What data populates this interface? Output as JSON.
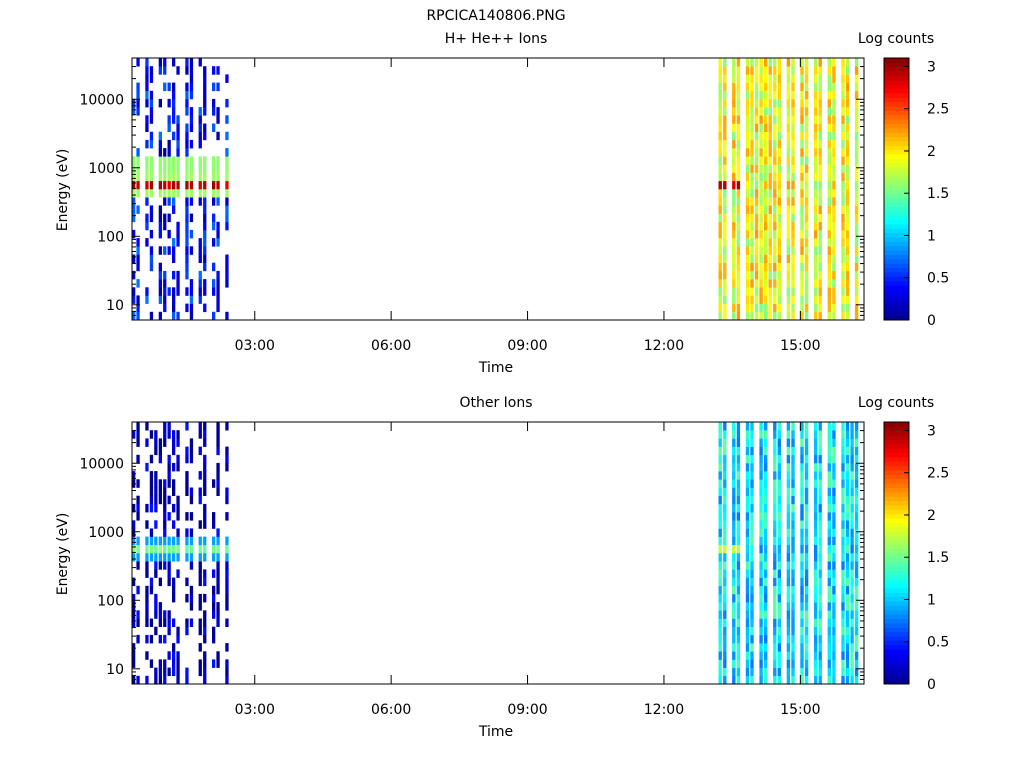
{
  "page_title": "RPCICA140806.PNG",
  "colormap": [
    "#00008f",
    "#0000ff",
    "#0080ff",
    "#00ffff",
    "#80ff80",
    "#ffff00",
    "#ff8000",
    "#ff0000",
    "#800000"
  ],
  "chart_data": [
    {
      "type": "heatmap",
      "title": "H+ He++ Ions",
      "xlabel": "Time",
      "ylabel": "Energy (eV)",
      "x_tick_labels": [
        "03:00",
        "06:00",
        "09:00",
        "12:00",
        "15:00"
      ],
      "x_tick_hours": [
        3,
        6,
        9,
        12,
        15
      ],
      "x_range_hours": [
        0.3,
        16.4
      ],
      "y_tick_labels": [
        "10",
        "100",
        "1000",
        "10000"
      ],
      "y_tick_values": [
        10,
        100,
        1000,
        10000
      ],
      "y_range": [
        6,
        40000
      ],
      "y_scale": "log",
      "colorbar": {
        "label": "Log counts",
        "range": [
          0,
          3.1
        ],
        "ticks": [
          "0",
          "0.5",
          "1",
          "1.5",
          "2",
          "2.5",
          "3"
        ],
        "tick_values": [
          0,
          0.5,
          1,
          1.5,
          2,
          2.5,
          3
        ]
      },
      "data_blocks": [
        {
          "t_start": 0.3,
          "t_end": 2.45,
          "typical_log_counts": 0.4,
          "peak_energy_eV": 550,
          "peak_log_counts": 3.0,
          "secondary_band_eV": 1100,
          "secondary_log_counts": 1.6
        },
        {
          "t_start": 13.2,
          "t_end": 16.3,
          "typical_log_counts": 1.9,
          "peak_energy_eV": 600,
          "peak_log_counts": 3.0,
          "peak_t_start": 13.2,
          "peak_t_end": 13.75
        }
      ]
    },
    {
      "type": "heatmap",
      "title": "Other Ions",
      "xlabel": "Time",
      "ylabel": "Energy (eV)",
      "x_tick_labels": [
        "03:00",
        "06:00",
        "09:00",
        "12:00",
        "15:00"
      ],
      "x_tick_hours": [
        3,
        6,
        9,
        12,
        15
      ],
      "x_range_hours": [
        0.3,
        16.4
      ],
      "y_tick_labels": [
        "10",
        "100",
        "1000",
        "10000"
      ],
      "y_tick_values": [
        10,
        100,
        1000,
        10000
      ],
      "y_range": [
        6,
        40000
      ],
      "y_scale": "log",
      "colorbar": {
        "label": "Log counts",
        "range": [
          0,
          3.1
        ],
        "ticks": [
          "0",
          "0.5",
          "1",
          "1.5",
          "2",
          "2.5",
          "3"
        ],
        "tick_values": [
          0,
          0.5,
          1,
          1.5,
          2,
          2.5,
          3
        ]
      },
      "data_blocks": [
        {
          "t_start": 0.3,
          "t_end": 2.45,
          "typical_log_counts": 0.1,
          "peak_energy_eV": 520,
          "peak_log_counts": 1.6
        },
        {
          "t_start": 13.2,
          "t_end": 16.3,
          "typical_log_counts": 1.1,
          "peak_energy_eV": 560,
          "peak_log_counts": 1.8,
          "peak_t_start": 13.2,
          "peak_t_end": 13.75
        }
      ]
    }
  ]
}
